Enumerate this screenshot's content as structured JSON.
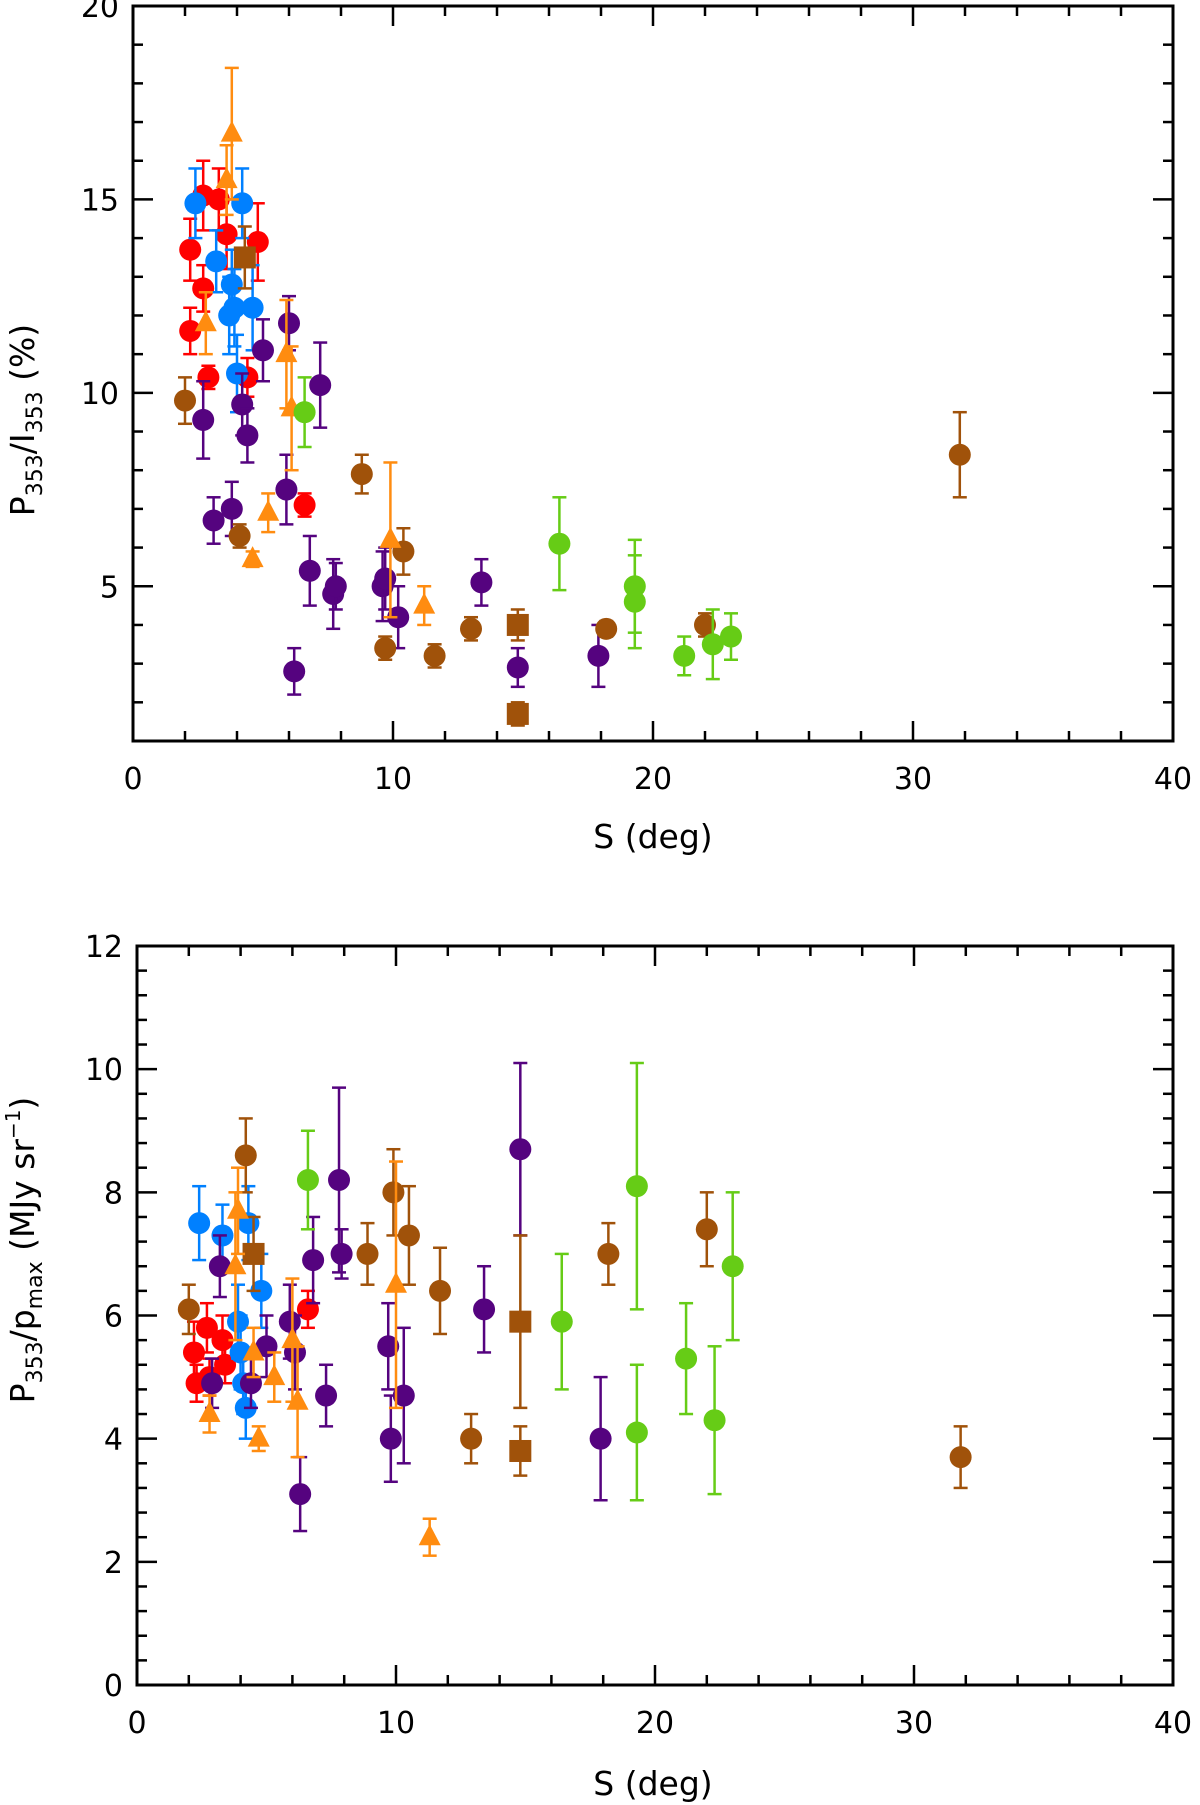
{
  "colors": {
    "red": "#ff0000",
    "blue": "#0080ff",
    "purple": "#55037f",
    "brown": "#a0520a",
    "orange": "#ff8c10",
    "green": "#66cc16"
  },
  "chart_data": [
    {
      "type": "scatter",
      "xlabel": "S (deg)",
      "ylabel": "P353/I353 (%)",
      "ylabel_parts": {
        "main": "P",
        "sub1": "353",
        "mid": "/I",
        "sub2": "353",
        "unit": " (%)"
      },
      "xlim": [
        0,
        40
      ],
      "ylim": [
        1,
        20
      ],
      "xticks": [
        0,
        10,
        20,
        30,
        40
      ],
      "yticks": [
        5,
        10,
        15,
        20
      ],
      "points": [
        {
          "x": 2.2,
          "y": 13.7,
          "yerr": 0.8,
          "c": "red",
          "m": "circle"
        },
        {
          "x": 2.2,
          "y": 11.6,
          "yerr": 0.6,
          "c": "red",
          "m": "circle"
        },
        {
          "x": 2.7,
          "y": 15.1,
          "yerr": 0.9,
          "c": "red",
          "m": "circle"
        },
        {
          "x": 2.7,
          "y": 12.7,
          "yerr": 0.6,
          "c": "red",
          "m": "circle"
        },
        {
          "x": 2.9,
          "y": 10.4,
          "yerr": 0.3,
          "c": "red",
          "m": "circle"
        },
        {
          "x": 3.3,
          "y": 15.0,
          "yerr": 0.8,
          "c": "red",
          "m": "circle"
        },
        {
          "x": 3.6,
          "y": 14.1,
          "yerr": 0.9,
          "c": "red",
          "m": "circle"
        },
        {
          "x": 4.4,
          "y": 10.4,
          "yerr": 0.5,
          "c": "red",
          "m": "circle"
        },
        {
          "x": 4.8,
          "y": 13.9,
          "yerr": 1.0,
          "c": "red",
          "m": "circle"
        },
        {
          "x": 6.6,
          "y": 7.1,
          "yerr": 0.3,
          "c": "red",
          "m": "circle"
        },
        {
          "x": 2.4,
          "y": 14.9,
          "yerr": 0.9,
          "c": "blue",
          "m": "circle"
        },
        {
          "x": 3.2,
          "y": 13.4,
          "yerr": 0.8,
          "c": "blue",
          "m": "circle"
        },
        {
          "x": 3.7,
          "y": 12.0,
          "yerr": 1.0,
          "c": "blue",
          "m": "circle"
        },
        {
          "x": 3.8,
          "y": 12.8,
          "yerr": 0.9,
          "c": "blue",
          "m": "circle"
        },
        {
          "x": 3.9,
          "y": 12.2,
          "yerr": 1.0,
          "c": "blue",
          "m": "circle"
        },
        {
          "x": 4.0,
          "y": 10.5,
          "yerr": 1.0,
          "c": "blue",
          "m": "circle"
        },
        {
          "x": 4.2,
          "y": 14.9,
          "yerr": 0.9,
          "c": "blue",
          "m": "circle"
        },
        {
          "x": 4.6,
          "y": 12.2,
          "yerr": 1.1,
          "c": "blue",
          "m": "circle"
        },
        {
          "x": 2.7,
          "y": 9.3,
          "yerr": 1.0,
          "c": "purple",
          "m": "circle"
        },
        {
          "x": 3.1,
          "y": 6.7,
          "yerr": 0.6,
          "c": "purple",
          "m": "circle"
        },
        {
          "x": 3.8,
          "y": 7.0,
          "yerr": 0.7,
          "c": "purple",
          "m": "circle"
        },
        {
          "x": 4.2,
          "y": 9.7,
          "yerr": 0.8,
          "c": "purple",
          "m": "circle"
        },
        {
          "x": 4.4,
          "y": 8.9,
          "yerr": 0.7,
          "c": "purple",
          "m": "circle"
        },
        {
          "x": 5.0,
          "y": 11.1,
          "yerr": 0.8,
          "c": "purple",
          "m": "circle"
        },
        {
          "x": 5.9,
          "y": 7.5,
          "yerr": 0.9,
          "c": "purple",
          "m": "circle"
        },
        {
          "x": 6.0,
          "y": 11.8,
          "yerr": 0.7,
          "c": "purple",
          "m": "circle"
        },
        {
          "x": 6.2,
          "y": 2.8,
          "yerr": 0.6,
          "c": "purple",
          "m": "circle"
        },
        {
          "x": 6.8,
          "y": 5.4,
          "yerr": 0.9,
          "c": "purple",
          "m": "circle"
        },
        {
          "x": 7.2,
          "y": 10.2,
          "yerr": 1.1,
          "c": "purple",
          "m": "circle"
        },
        {
          "x": 7.7,
          "y": 4.8,
          "yerr": 0.9,
          "c": "purple",
          "m": "circle"
        },
        {
          "x": 7.8,
          "y": 5.0,
          "yerr": 0.6,
          "c": "purple",
          "m": "circle"
        },
        {
          "x": 9.6,
          "y": 5.0,
          "yerr": 0.9,
          "c": "purple",
          "m": "circle"
        },
        {
          "x": 9.7,
          "y": 5.2,
          "yerr": 0.8,
          "c": "purple",
          "m": "circle"
        },
        {
          "x": 10.2,
          "y": 4.2,
          "yerr": 0.8,
          "c": "purple",
          "m": "circle"
        },
        {
          "x": 13.4,
          "y": 5.1,
          "yerr": 0.6,
          "c": "purple",
          "m": "circle"
        },
        {
          "x": 14.8,
          "y": 2.9,
          "yerr": 0.5,
          "c": "purple",
          "m": "circle"
        },
        {
          "x": 17.9,
          "y": 3.2,
          "yerr": 0.8,
          "c": "purple",
          "m": "circle"
        },
        {
          "x": 2.0,
          "y": 9.8,
          "yerr": 0.6,
          "c": "brown",
          "m": "circle"
        },
        {
          "x": 4.1,
          "y": 6.3,
          "yerr": 0.3,
          "c": "brown",
          "m": "circle"
        },
        {
          "x": 8.8,
          "y": 7.9,
          "yerr": 0.5,
          "c": "brown",
          "m": "circle"
        },
        {
          "x": 9.7,
          "y": 3.4,
          "yerr": 0.3,
          "c": "brown",
          "m": "circle"
        },
        {
          "x": 10.4,
          "y": 5.9,
          "yerr": 0.6,
          "c": "brown",
          "m": "circle"
        },
        {
          "x": 11.6,
          "y": 3.2,
          "yerr": 0.3,
          "c": "brown",
          "m": "circle"
        },
        {
          "x": 13.0,
          "y": 3.9,
          "yerr": 0.3,
          "c": "brown",
          "m": "circle"
        },
        {
          "x": 18.2,
          "y": 3.9,
          "yerr": 0.2,
          "c": "brown",
          "m": "circle"
        },
        {
          "x": 22.0,
          "y": 4.0,
          "yerr": 0.3,
          "c": "brown",
          "m": "circle"
        },
        {
          "x": 31.8,
          "y": 8.4,
          "yerr": 1.1,
          "c": "brown",
          "m": "circle"
        },
        {
          "x": 4.3,
          "y": 13.5,
          "yerr": 0.8,
          "c": "brown",
          "m": "square"
        },
        {
          "x": 14.8,
          "y": 4.0,
          "yerr": 0.4,
          "c": "brown",
          "m": "square"
        },
        {
          "x": 14.8,
          "y": 1.7,
          "yerr": 0.3,
          "c": "brown",
          "m": "square"
        },
        {
          "x": 2.8,
          "y": 11.8,
          "yerr": 0.8,
          "c": "orange",
          "m": "triangle"
        },
        {
          "x": 3.6,
          "y": 15.5,
          "yerr": 0.9,
          "c": "orange",
          "m": "triangle"
        },
        {
          "x": 3.8,
          "y": 16.7,
          "yerr": 1.7,
          "c": "orange",
          "m": "triangle"
        },
        {
          "x": 4.6,
          "y": 5.7,
          "yerr": 0.2,
          "c": "orange",
          "m": "triangle"
        },
        {
          "x": 5.2,
          "y": 6.9,
          "yerr": 0.5,
          "c": "orange",
          "m": "triangle"
        },
        {
          "x": 5.9,
          "y": 11.0,
          "yerr": 1.4,
          "c": "orange",
          "m": "triangle"
        },
        {
          "x": 6.1,
          "y": 9.6,
          "yerr": 1.6,
          "c": "orange",
          "m": "triangle"
        },
        {
          "x": 9.9,
          "y": 6.2,
          "yerr": 2.0,
          "c": "orange",
          "m": "triangle"
        },
        {
          "x": 11.2,
          "y": 4.5,
          "yerr": 0.5,
          "c": "orange",
          "m": "triangle"
        },
        {
          "x": 6.6,
          "y": 9.5,
          "yerr": 0.9,
          "c": "green",
          "m": "circle"
        },
        {
          "x": 16.4,
          "y": 6.1,
          "yerr": 1.2,
          "c": "green",
          "m": "circle"
        },
        {
          "x": 19.3,
          "y": 5.0,
          "yerr": 1.2,
          "c": "green",
          "m": "circle"
        },
        {
          "x": 19.3,
          "y": 4.6,
          "yerr": 1.2,
          "c": "green",
          "m": "circle"
        },
        {
          "x": 21.2,
          "y": 3.2,
          "yerr": 0.5,
          "c": "green",
          "m": "circle"
        },
        {
          "x": 22.3,
          "y": 3.5,
          "yerr": 0.9,
          "c": "green",
          "m": "circle"
        },
        {
          "x": 23.0,
          "y": 3.7,
          "yerr": 0.6,
          "c": "green",
          "m": "circle"
        }
      ]
    },
    {
      "type": "scatter",
      "xlabel": "S (deg)",
      "ylabel": "P353/pmax (MJy sr-1)",
      "ylabel_parts": {
        "main": "P",
        "sub1": "353",
        "mid": "/p",
        "sub2": "max",
        "unit": " (MJy sr",
        "sup": "−1",
        "close": ")"
      },
      "xlim": [
        0,
        40
      ],
      "ylim": [
        0,
        12
      ],
      "xticks": [
        0,
        10,
        20,
        30,
        40
      ],
      "yticks": [
        0,
        2,
        4,
        6,
        8,
        10,
        12
      ],
      "points": [
        {
          "x": 2.2,
          "y": 5.4,
          "yerr": 0.5,
          "c": "red",
          "m": "circle"
        },
        {
          "x": 2.3,
          "y": 4.9,
          "yerr": 0.3,
          "c": "red",
          "m": "circle"
        },
        {
          "x": 2.7,
          "y": 5.8,
          "yerr": 0.4,
          "c": "red",
          "m": "circle"
        },
        {
          "x": 2.8,
          "y": 5.0,
          "yerr": 0.3,
          "c": "red",
          "m": "circle"
        },
        {
          "x": 3.3,
          "y": 5.6,
          "yerr": 0.4,
          "c": "red",
          "m": "circle"
        },
        {
          "x": 3.4,
          "y": 5.2,
          "yerr": 0.3,
          "c": "red",
          "m": "circle"
        },
        {
          "x": 6.6,
          "y": 6.1,
          "yerr": 0.3,
          "c": "red",
          "m": "circle"
        },
        {
          "x": 2.4,
          "y": 7.5,
          "yerr": 0.6,
          "c": "blue",
          "m": "circle"
        },
        {
          "x": 3.3,
          "y": 7.3,
          "yerr": 0.5,
          "c": "blue",
          "m": "circle"
        },
        {
          "x": 3.9,
          "y": 5.9,
          "yerr": 0.6,
          "c": "blue",
          "m": "circle"
        },
        {
          "x": 4.0,
          "y": 5.4,
          "yerr": 0.6,
          "c": "blue",
          "m": "circle"
        },
        {
          "x": 4.1,
          "y": 4.9,
          "yerr": 0.5,
          "c": "blue",
          "m": "circle"
        },
        {
          "x": 4.2,
          "y": 4.5,
          "yerr": 0.5,
          "c": "blue",
          "m": "circle"
        },
        {
          "x": 4.3,
          "y": 7.5,
          "yerr": 0.6,
          "c": "blue",
          "m": "circle"
        },
        {
          "x": 4.8,
          "y": 6.4,
          "yerr": 0.6,
          "c": "blue",
          "m": "circle"
        },
        {
          "x": 2.9,
          "y": 4.9,
          "yerr": 0.4,
          "c": "purple",
          "m": "circle"
        },
        {
          "x": 3.2,
          "y": 6.8,
          "yerr": 0.5,
          "c": "purple",
          "m": "circle"
        },
        {
          "x": 4.4,
          "y": 4.9,
          "yerr": 0.4,
          "c": "purple",
          "m": "circle"
        },
        {
          "x": 5.0,
          "y": 5.5,
          "yerr": 0.5,
          "c": "purple",
          "m": "circle"
        },
        {
          "x": 5.9,
          "y": 5.9,
          "yerr": 0.6,
          "c": "purple",
          "m": "circle"
        },
        {
          "x": 6.1,
          "y": 5.4,
          "yerr": 0.6,
          "c": "purple",
          "m": "circle"
        },
        {
          "x": 6.3,
          "y": 3.1,
          "yerr": 0.6,
          "c": "purple",
          "m": "circle"
        },
        {
          "x": 6.8,
          "y": 6.9,
          "yerr": 0.7,
          "c": "purple",
          "m": "circle"
        },
        {
          "x": 7.3,
          "y": 4.7,
          "yerr": 0.5,
          "c": "purple",
          "m": "circle"
        },
        {
          "x": 7.8,
          "y": 8.2,
          "yerr": 1.5,
          "c": "purple",
          "m": "circle"
        },
        {
          "x": 7.9,
          "y": 7.0,
          "yerr": 0.4,
          "c": "purple",
          "m": "circle"
        },
        {
          "x": 9.7,
          "y": 5.5,
          "yerr": 0.7,
          "c": "purple",
          "m": "circle"
        },
        {
          "x": 9.8,
          "y": 4.0,
          "yerr": 0.7,
          "c": "purple",
          "m": "circle"
        },
        {
          "x": 10.3,
          "y": 4.7,
          "yerr": 1.1,
          "c": "purple",
          "m": "circle"
        },
        {
          "x": 13.4,
          "y": 6.1,
          "yerr": 0.7,
          "c": "purple",
          "m": "circle"
        },
        {
          "x": 14.8,
          "y": 8.7,
          "yerr": 1.4,
          "c": "purple",
          "m": "circle"
        },
        {
          "x": 17.9,
          "y": 4.0,
          "yerr": 1.0,
          "c": "purple",
          "m": "circle"
        },
        {
          "x": 2.0,
          "y": 6.1,
          "yerr": 0.4,
          "c": "brown",
          "m": "circle"
        },
        {
          "x": 4.2,
          "y": 8.6,
          "yerr": 0.6,
          "c": "brown",
          "m": "circle"
        },
        {
          "x": 8.9,
          "y": 7.0,
          "yerr": 0.5,
          "c": "brown",
          "m": "circle"
        },
        {
          "x": 9.9,
          "y": 8.0,
          "yerr": 0.7,
          "c": "brown",
          "m": "circle"
        },
        {
          "x": 10.5,
          "y": 7.3,
          "yerr": 0.8,
          "c": "brown",
          "m": "circle"
        },
        {
          "x": 11.7,
          "y": 6.4,
          "yerr": 0.7,
          "c": "brown",
          "m": "circle"
        },
        {
          "x": 12.9,
          "y": 4.0,
          "yerr": 0.4,
          "c": "brown",
          "m": "circle"
        },
        {
          "x": 18.2,
          "y": 7.0,
          "yerr": 0.5,
          "c": "brown",
          "m": "circle"
        },
        {
          "x": 22.0,
          "y": 7.4,
          "yerr": 0.6,
          "c": "brown",
          "m": "circle"
        },
        {
          "x": 31.8,
          "y": 3.7,
          "yerr": 0.5,
          "c": "brown",
          "m": "circle"
        },
        {
          "x": 4.5,
          "y": 7.0,
          "yerr": 0.6,
          "c": "brown",
          "m": "square"
        },
        {
          "x": 14.8,
          "y": 5.9,
          "yerr": 1.4,
          "c": "brown",
          "m": "square"
        },
        {
          "x": 14.8,
          "y": 3.8,
          "yerr": 0.4,
          "c": "brown",
          "m": "square"
        },
        {
          "x": 2.8,
          "y": 4.4,
          "yerr": 0.3,
          "c": "orange",
          "m": "triangle"
        },
        {
          "x": 3.8,
          "y": 6.8,
          "yerr": 1.2,
          "c": "orange",
          "m": "triangle"
        },
        {
          "x": 3.9,
          "y": 7.7,
          "yerr": 0.7,
          "c": "orange",
          "m": "triangle"
        },
        {
          "x": 4.5,
          "y": 5.4,
          "yerr": 0.4,
          "c": "orange",
          "m": "triangle"
        },
        {
          "x": 4.7,
          "y": 4.0,
          "yerr": 0.2,
          "c": "orange",
          "m": "triangle"
        },
        {
          "x": 5.3,
          "y": 5.0,
          "yerr": 0.4,
          "c": "orange",
          "m": "triangle"
        },
        {
          "x": 6.0,
          "y": 5.6,
          "yerr": 1.0,
          "c": "orange",
          "m": "triangle"
        },
        {
          "x": 6.2,
          "y": 4.6,
          "yerr": 0.9,
          "c": "orange",
          "m": "triangle"
        },
        {
          "x": 10.0,
          "y": 6.5,
          "yerr": 2.0,
          "c": "orange",
          "m": "triangle"
        },
        {
          "x": 11.3,
          "y": 2.4,
          "yerr": 0.3,
          "c": "orange",
          "m": "triangle"
        },
        {
          "x": 6.6,
          "y": 8.2,
          "yerr": 0.8,
          "c": "green",
          "m": "circle"
        },
        {
          "x": 16.4,
          "y": 5.9,
          "yerr": 1.1,
          "c": "green",
          "m": "circle"
        },
        {
          "x": 19.3,
          "y": 8.1,
          "yerr": 2.0,
          "c": "green",
          "m": "circle"
        },
        {
          "x": 19.3,
          "y": 4.1,
          "yerr": 1.1,
          "c": "green",
          "m": "circle"
        },
        {
          "x": 21.2,
          "y": 5.3,
          "yerr": 0.9,
          "c": "green",
          "m": "circle"
        },
        {
          "x": 22.3,
          "y": 4.3,
          "yerr": 1.2,
          "c": "green",
          "m": "circle"
        },
        {
          "x": 23.0,
          "y": 6.8,
          "yerr": 1.2,
          "c": "green",
          "m": "circle"
        }
      ]
    }
  ]
}
